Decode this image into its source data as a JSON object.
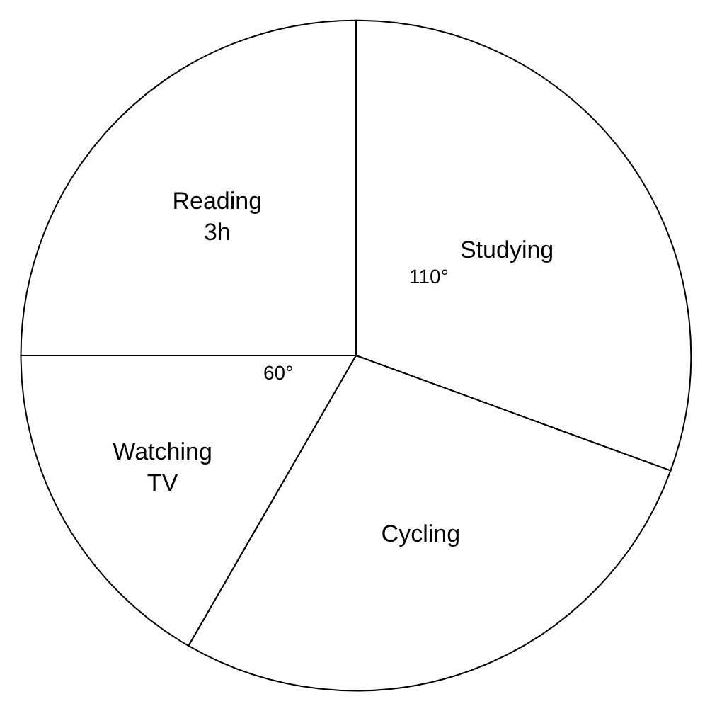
{
  "chart_data": {
    "type": "pie",
    "categories": [
      "Studying",
      "Cycling",
      "Watching TV",
      "Reading"
    ],
    "values": [
      3.67,
      3.33,
      2,
      3
    ],
    "colors": [
      "#ffffff",
      "#ffffff",
      "#ffffff",
      "#ffffff"
    ],
    "value_labels": [
      null,
      null,
      null,
      "3h"
    ],
    "annotations": [
      "110°",
      "60°"
    ],
    "legend": false
  }
}
